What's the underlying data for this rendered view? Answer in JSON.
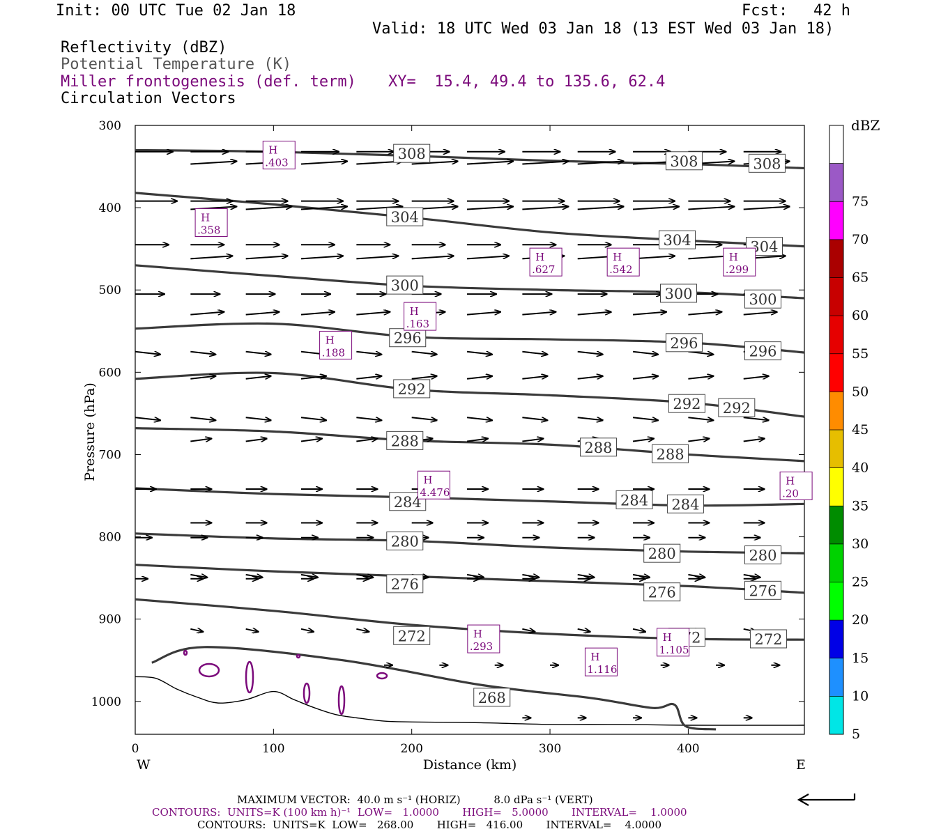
{
  "header": {
    "init": "Init: 00 UTC Tue 02 Jan 18",
    "fcst_label": "Fcst:",
    "fcst_value": "42 h",
    "valid": "Valid: 18 UTC Wed 03 Jan 18 (13 EST Wed 03 Jan 18)"
  },
  "legend_lines": {
    "reflectivity": "Reflectivity (dBZ)",
    "theta": "Potential Temperature (K)",
    "miller": "Miller frontogenesis (def. term)",
    "xy": "XY=  15.4, 49.4 to 135.6, 62.4",
    "vectors": "Circulation Vectors"
  },
  "colors": {
    "theta": "#3a3a3a",
    "miller": "#7b0a7b",
    "terrain": "#000000"
  },
  "colorbar": {
    "title": "dBZ",
    "levels": [
      {
        "label": "5",
        "color": "#00e6e6"
      },
      {
        "label": "10",
        "color": "#1e90ff"
      },
      {
        "label": "15",
        "color": "#0000e6"
      },
      {
        "label": "20",
        "color": "#00ff00"
      },
      {
        "label": "25",
        "color": "#00d200"
      },
      {
        "label": "30",
        "color": "#008c00"
      },
      {
        "label": "35",
        "color": "#ffff00"
      },
      {
        "label": "40",
        "color": "#e6be00"
      },
      {
        "label": "45",
        "color": "#ff8c00"
      },
      {
        "label": "50",
        "color": "#ff0000"
      },
      {
        "label": "55",
        "color": "#e60000"
      },
      {
        "label": "60",
        "color": "#c80000"
      },
      {
        "label": "65",
        "color": "#aa0000"
      },
      {
        "label": "70",
        "color": "#ff00ff"
      },
      {
        "label": "75",
        "color": "#9b59c6"
      }
    ]
  },
  "axes": {
    "ylabel": "Pressure (hPa)",
    "xlabel": "Distance (km)",
    "west": "W",
    "east": "E"
  },
  "footer": {
    "max_vector": "MAXIMUM VECTOR:  40.0 m s⁻¹ (HORIZ)          8.0 dPa s⁻¹ (VERT)",
    "contours_miller": "CONTOURS:  UNITS=K (100 km h)⁻¹  LOW=   1.0000       HIGH=   5.0000       INTERVAL=    1.0000",
    "contours_theta": "CONTOURS:  UNITS=K  LOW=   268.00       HIGH=   416.00       INTERVAL=    4.0000"
  },
  "chart_data": {
    "type": "line",
    "x_range": [
      0,
      484
    ],
    "y_range": [
      300,
      1040
    ],
    "y_scale": "linear, inverted",
    "x_ticks": [
      "0",
      "100",
      "200",
      "300",
      "400"
    ],
    "y_ticks": [
      "300",
      "400",
      "500",
      "600",
      "700",
      "800",
      "900",
      "1000"
    ],
    "series": [
      {
        "name": "308",
        "x": [
          0,
          100,
          200,
          300,
          400,
          484
        ],
        "y": [
          330,
          332,
          337,
          343,
          347,
          352
        ]
      },
      {
        "name": "304",
        "x": [
          0,
          100,
          200,
          300,
          400,
          484
        ],
        "y": [
          382,
          396,
          412,
          430,
          440,
          447
        ]
      },
      {
        "name": "300",
        "x": [
          0,
          100,
          200,
          300,
          400,
          484
        ],
        "y": [
          470,
          483,
          495,
          500,
          503,
          510
        ]
      },
      {
        "name": "296",
        "x": [
          0,
          100,
          200,
          300,
          400,
          484
        ],
        "y": [
          547,
          541,
          557,
          560,
          564,
          576
        ]
      },
      {
        "name": "292",
        "x": [
          0,
          100,
          200,
          300,
          400,
          484
        ],
        "y": [
          608,
          601,
          621,
          628,
          637,
          654
        ]
      },
      {
        "name": "288",
        "x": [
          0,
          100,
          200,
          300,
          400,
          484
        ],
        "y": [
          668,
          672,
          683,
          688,
          700,
          708
        ]
      },
      {
        "name": "284",
        "x": [
          0,
          100,
          200,
          300,
          400,
          484
        ],
        "y": [
          741,
          748,
          752,
          757,
          762,
          760
        ]
      },
      {
        "name": "280",
        "x": [
          0,
          100,
          200,
          300,
          400,
          484
        ],
        "y": [
          796,
          802,
          805,
          813,
          818,
          820
        ]
      },
      {
        "name": "276",
        "x": [
          0,
          100,
          200,
          300,
          400,
          484
        ],
        "y": [
          834,
          842,
          848,
          854,
          860,
          868
        ]
      },
      {
        "name": "272",
        "x": [
          0,
          100,
          200,
          300,
          400,
          484
        ],
        "y": [
          876,
          890,
          907,
          918,
          924,
          925
        ]
      },
      {
        "name": "268",
        "x": [
          12,
          50,
          150,
          250,
          330,
          374,
          390,
          398,
          420
        ],
        "y": [
          953,
          934,
          950,
          980,
          996,
          1008,
          1004,
          1030,
          1034
        ]
      }
    ],
    "frontogenesis_maxima": [
      {
        "label": "H",
        "value": ".403",
        "x": 104,
        "y": 342
      },
      {
        "label": "H",
        "value": ".358",
        "x": 55,
        "y": 424
      },
      {
        "label": "H",
        "value": ".627",
        "x": 297,
        "y": 472
      },
      {
        "label": "H",
        "value": ".542",
        "x": 353,
        "y": 472
      },
      {
        "label": "H",
        "value": ".299",
        "x": 437,
        "y": 472
      },
      {
        "label": "H",
        "value": ".163",
        "x": 206,
        "y": 538
      },
      {
        "label": "H",
        "value": ".188",
        "x": 145,
        "y": 573
      },
      {
        "label": "H",
        "value": "4.476",
        "x": 216,
        "y": 743
      },
      {
        "label": "H",
        "value": ".20",
        "x": 478,
        "y": 744
      },
      {
        "label": "H",
        "value": ".293",
        "x": 252,
        "y": 930
      },
      {
        "label": "H",
        "value": "1.116",
        "x": 337,
        "y": 958
      },
      {
        "label": "H",
        "value": "1.105",
        "x": 389,
        "y": 934
      }
    ],
    "theta_labels": [
      {
        "text": "308",
        "x": 200,
        "y": 334
      },
      {
        "text": "308",
        "x": 397,
        "y": 343
      },
      {
        "text": "308",
        "x": 457,
        "y": 346
      },
      {
        "text": "304",
        "x": 195,
        "y": 411
      },
      {
        "text": "304",
        "x": 392,
        "y": 439
      },
      {
        "text": "304",
        "x": 455,
        "y": 447
      },
      {
        "text": "300",
        "x": 195,
        "y": 494
      },
      {
        "text": "300",
        "x": 393,
        "y": 504
      },
      {
        "text": "300",
        "x": 454,
        "y": 511
      },
      {
        "text": "296",
        "x": 197,
        "y": 558
      },
      {
        "text": "296",
        "x": 397,
        "y": 564
      },
      {
        "text": "296",
        "x": 454,
        "y": 574
      },
      {
        "text": "292",
        "x": 200,
        "y": 620
      },
      {
        "text": "292",
        "x": 399,
        "y": 638
      },
      {
        "text": "292",
        "x": 435,
        "y": 643
      },
      {
        "text": "288",
        "x": 195,
        "y": 683
      },
      {
        "text": "288",
        "x": 335,
        "y": 691
      },
      {
        "text": "288",
        "x": 387,
        "y": 699
      },
      {
        "text": "284",
        "x": 197,
        "y": 757
      },
      {
        "text": "284",
        "x": 361,
        "y": 755
      },
      {
        "text": "284",
        "x": 398,
        "y": 760
      },
      {
        "text": "280",
        "x": 195,
        "y": 805
      },
      {
        "text": "280",
        "x": 381,
        "y": 820
      },
      {
        "text": "280",
        "x": 454,
        "y": 822
      },
      {
        "text": "276",
        "x": 195,
        "y": 857
      },
      {
        "text": "276",
        "x": 381,
        "y": 867
      },
      {
        "text": "276",
        "x": 454,
        "y": 865
      },
      {
        "text": "272",
        "x": 200,
        "y": 920
      },
      {
        "text": "272",
        "x": 399,
        "y": 922
      },
      {
        "text": "272",
        "x": 458,
        "y": 924
      },
      {
        "text": "268",
        "x": 258,
        "y": 995
      }
    ],
    "terrain": {
      "x": [
        0,
        15,
        30,
        45,
        60,
        80,
        100,
        115,
        130,
        145,
        160,
        180,
        200,
        250,
        300,
        350,
        400,
        484
      ],
      "y": [
        970,
        972,
        985,
        995,
        1002,
        998,
        988,
        998,
        1008,
        1016,
        1020,
        1024,
        1025,
        1026,
        1028,
        1028,
        1029,
        1029
      ]
    },
    "vector_rows": [
      {
        "p": 332,
        "u": 9,
        "w": 0,
        "x0": 0
      },
      {
        "p": 347,
        "u": 11,
        "w": 1,
        "x0": 40
      },
      {
        "p": 392,
        "u": 10,
        "w": 0,
        "x0": 0
      },
      {
        "p": 402,
        "u": 11,
        "w": 1,
        "x0": 40
      },
      {
        "p": 445,
        "u": 8,
        "w": 0,
        "x0": 0
      },
      {
        "p": 462,
        "u": 10,
        "w": 1,
        "x0": 40
      },
      {
        "p": 505,
        "u": 7,
        "w": 0,
        "x0": 0
      },
      {
        "p": 530,
        "u": 8,
        "w": 1,
        "x0": 40
      },
      {
        "p": 575,
        "u": 6,
        "w": -1,
        "x0": 0
      },
      {
        "p": 608,
        "u": 6,
        "w": 1,
        "x0": 40
      },
      {
        "p": 655,
        "u": 6,
        "w": -1,
        "x0": 0
      },
      {
        "p": 684,
        "u": 5,
        "w": 1,
        "x0": 40
      },
      {
        "p": 742,
        "u": 5,
        "w": 0,
        "x0": 0
      },
      {
        "p": 783,
        "u": 5,
        "w": 0,
        "x0": 40
      },
      {
        "p": 801,
        "u": 4,
        "w": 0,
        "x0": 0
      },
      {
        "p": 846,
        "u": 4,
        "w": -1,
        "x0": 40
      },
      {
        "p": 851,
        "u": 3,
        "w": 0,
        "x0": 0
      },
      {
        "p": 912,
        "u": 3,
        "w": -1,
        "x0": 40
      },
      {
        "p": 956,
        "u": 2,
        "w": 0,
        "x0": 180
      },
      {
        "p": 1020,
        "u": 2,
        "w": 0,
        "x0": 280
      }
    ]
  }
}
